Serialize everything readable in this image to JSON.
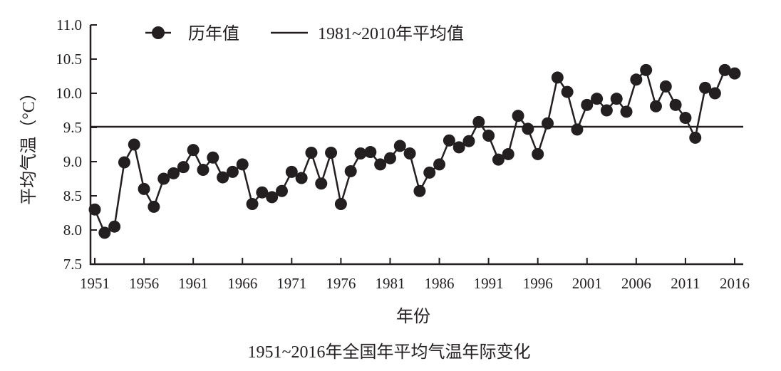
{
  "chart_data": {
    "type": "line",
    "title": "1951~2016年全国年平均气温年际变化",
    "xlabel": "年份",
    "ylabel": "平均气温（°C）",
    "xlim": [
      1951,
      2016
    ],
    "ylim": [
      7.5,
      11.0
    ],
    "xticks": [
      "1951",
      "1956",
      "1961",
      "1966",
      "1971",
      "1976",
      "1981",
      "1986",
      "1991",
      "1996",
      "2001",
      "2006",
      "2011",
      "2016"
    ],
    "yticks": [
      "7.5",
      "8.0",
      "8.5",
      "9.0",
      "9.5",
      "10.0",
      "10.5",
      "11.0"
    ],
    "legend_placement": "top-left",
    "grid": false,
    "color": "#231f20",
    "series": [
      {
        "name": "历年值",
        "x": [
          1951,
          1952,
          1953,
          1954,
          1955,
          1956,
          1957,
          1958,
          1959,
          1960,
          1961,
          1962,
          1963,
          1964,
          1965,
          1966,
          1967,
          1968,
          1969,
          1970,
          1971,
          1972,
          1973,
          1974,
          1975,
          1976,
          1977,
          1978,
          1979,
          1980,
          1981,
          1982,
          1983,
          1984,
          1985,
          1986,
          1987,
          1988,
          1989,
          1990,
          1991,
          1992,
          1993,
          1994,
          1995,
          1996,
          1997,
          1998,
          1999,
          2000,
          2001,
          2002,
          2003,
          2004,
          2005,
          2006,
          2007,
          2008,
          2009,
          2010,
          2011,
          2012,
          2013,
          2014,
          2015,
          2016
        ],
        "values": [
          8.3,
          7.96,
          8.05,
          8.99,
          9.25,
          8.6,
          8.34,
          8.75,
          8.83,
          8.92,
          9.17,
          8.88,
          9.06,
          8.77,
          8.85,
          8.96,
          8.38,
          8.55,
          8.48,
          8.57,
          8.85,
          8.76,
          9.13,
          8.68,
          9.13,
          8.38,
          8.86,
          9.12,
          9.14,
          8.96,
          9.05,
          9.23,
          9.12,
          8.57,
          8.84,
          8.96,
          9.31,
          9.21,
          9.3,
          9.58,
          9.38,
          9.03,
          9.11,
          9.67,
          9.48,
          9.11,
          9.56,
          10.23,
          10.02,
          9.47,
          9.83,
          9.92,
          9.75,
          9.92,
          9.73,
          10.2,
          10.34,
          9.81,
          10.1,
          9.83,
          9.64,
          9.35,
          10.08,
          10.0,
          10.34,
          10.29
        ]
      },
      {
        "name": "1981~2010年平均值",
        "value": 9.51
      }
    ]
  }
}
